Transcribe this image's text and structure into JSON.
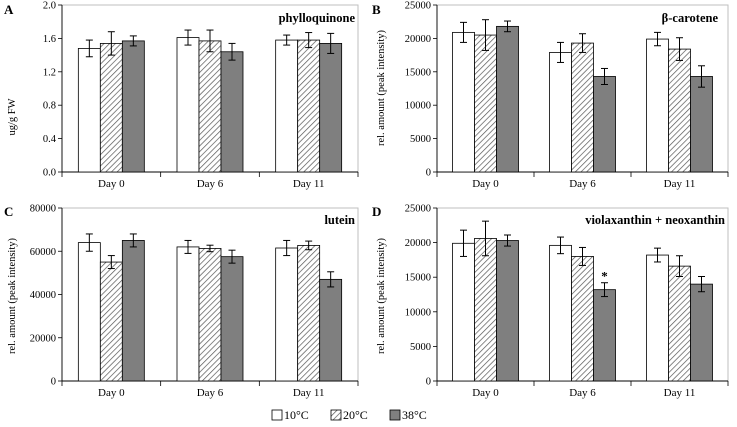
{
  "colors": {
    "10C": "#ffffff",
    "20C": "hatched",
    "38C": "#7f7f7f",
    "edge": "#000000",
    "frame": "#bfbfbf"
  },
  "legend": [
    {
      "label": "10°C"
    },
    {
      "label": "20°C"
    },
    {
      "label": "38°C"
    }
  ],
  "chart_data": [
    {
      "panel": "A",
      "type": "bar",
      "title": "phylloquinone",
      "ylabel": "ug/g FW",
      "xlabel": "",
      "categories": [
        "Day 0",
        "Day 6",
        "Day 11"
      ],
      "ylim": [
        0,
        2.0
      ],
      "yticks": [
        0,
        0.4,
        0.8,
        1.2,
        1.6,
        2.0
      ],
      "ytick_labels": [
        "0.0",
        "0.4",
        "0.8",
        "1.2",
        "1.6",
        "2.0"
      ],
      "series": [
        {
          "name": "10°C",
          "values": [
            1.48,
            1.61,
            1.58
          ],
          "errors": [
            0.1,
            0.09,
            0.06
          ]
        },
        {
          "name": "20°C",
          "values": [
            1.54,
            1.57,
            1.58
          ],
          "errors": [
            0.14,
            0.13,
            0.09
          ]
        },
        {
          "name": "38°C",
          "values": [
            1.57,
            1.44,
            1.54
          ],
          "errors": [
            0.06,
            0.1,
            0.12
          ]
        }
      ],
      "annotations": []
    },
    {
      "panel": "B",
      "type": "bar",
      "title": "β-carotene",
      "ylabel": "rel. amount (peak intensity)",
      "xlabel": "",
      "categories": [
        "Day 0",
        "Day 6",
        "Day 11"
      ],
      "ylim": [
        0,
        25000
      ],
      "yticks": [
        0,
        5000,
        10000,
        15000,
        20000,
        25000
      ],
      "ytick_labels": [
        "0",
        "5000",
        "10000",
        "15000",
        "20000",
        "25000"
      ],
      "series": [
        {
          "name": "10°C",
          "values": [
            20900,
            17900,
            19900
          ],
          "errors": [
            1500,
            1500,
            1000
          ]
        },
        {
          "name": "20°C",
          "values": [
            20500,
            19300,
            18400
          ],
          "errors": [
            2300,
            1400,
            1700
          ]
        },
        {
          "name": "38°C",
          "values": [
            21800,
            14300,
            14300
          ],
          "errors": [
            800,
            1200,
            1600
          ]
        }
      ],
      "annotations": []
    },
    {
      "panel": "C",
      "type": "bar",
      "title": "lutein",
      "ylabel": "rel. amount (peak intensity)",
      "xlabel": "",
      "categories": [
        "Day 0",
        "Day 6",
        "Day 11"
      ],
      "ylim": [
        0,
        80000
      ],
      "yticks": [
        0,
        20000,
        40000,
        60000,
        80000
      ],
      "ytick_labels": [
        "0",
        "20000",
        "40000",
        "60000",
        "80000"
      ],
      "series": [
        {
          "name": "10°C",
          "values": [
            64000,
            62000,
            61500
          ],
          "errors": [
            4000,
            3000,
            3500
          ]
        },
        {
          "name": "20°C",
          "values": [
            55000,
            61300,
            62700
          ],
          "errors": [
            3000,
            1500,
            2000
          ]
        },
        {
          "name": "38°C",
          "values": [
            65000,
            57500,
            47000
          ],
          "errors": [
            3000,
            3000,
            3500
          ]
        }
      ],
      "annotations": []
    },
    {
      "panel": "D",
      "type": "bar",
      "title": "violaxanthin + neoxanthin",
      "ylabel": "rel. amount (peak intensity)",
      "xlabel": "",
      "categories": [
        "Day 0",
        "Day 6",
        "Day 11"
      ],
      "ylim": [
        0,
        25000
      ],
      "yticks": [
        0,
        5000,
        10000,
        15000,
        20000,
        25000
      ],
      "ytick_labels": [
        "0",
        "5000",
        "10000",
        "15000",
        "20000",
        "25000"
      ],
      "series": [
        {
          "name": "10°C",
          "values": [
            19900,
            19600,
            18200
          ],
          "errors": [
            1900,
            1200,
            1000
          ]
        },
        {
          "name": "20°C",
          "values": [
            20600,
            18000,
            16600
          ],
          "errors": [
            2500,
            1300,
            1500
          ]
        },
        {
          "name": "38°C",
          "values": [
            20300,
            13200,
            14000
          ],
          "errors": [
            800,
            1000,
            1100
          ]
        }
      ],
      "annotations": [
        {
          "text": "*",
          "category": "Day 6",
          "series": "38°C"
        }
      ]
    }
  ]
}
